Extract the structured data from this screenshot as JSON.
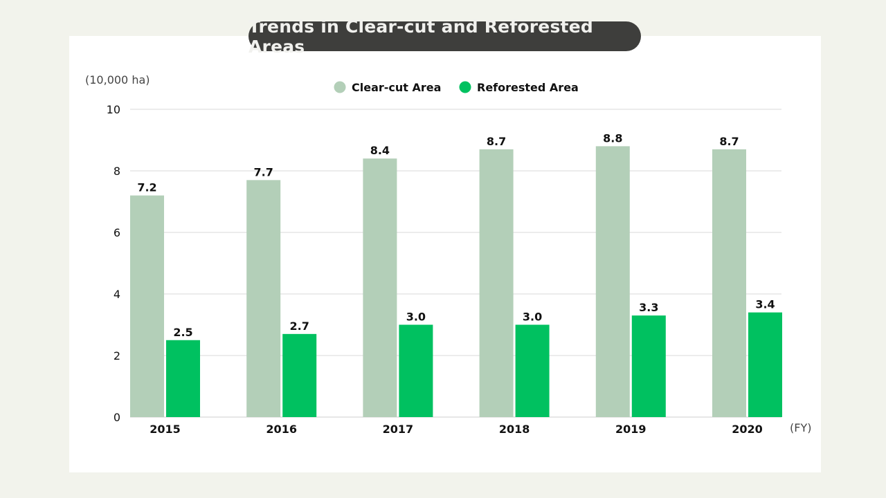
{
  "chart_data": {
    "type": "bar",
    "title": "Trends in Clear-cut and Reforested Areas",
    "ylabel": "(10,000 ha)",
    "xlabel": "(FY)",
    "ylim": [
      0,
      10
    ],
    "yticks": [
      0,
      2,
      4,
      6,
      8,
      10
    ],
    "grid": true,
    "legend_position": "top-center",
    "categories": [
      "2015",
      "2016",
      "2017",
      "2018",
      "2019",
      "2020"
    ],
    "series": [
      {
        "name": "Clear-cut Area",
        "color": "#b3cfb8",
        "values": [
          7.2,
          7.7,
          8.4,
          8.7,
          8.8,
          8.7
        ]
      },
      {
        "name": "Reforested Area",
        "color": "#00c160",
        "values": [
          2.5,
          2.7,
          3.0,
          3.0,
          3.3,
          3.4
        ]
      }
    ]
  }
}
